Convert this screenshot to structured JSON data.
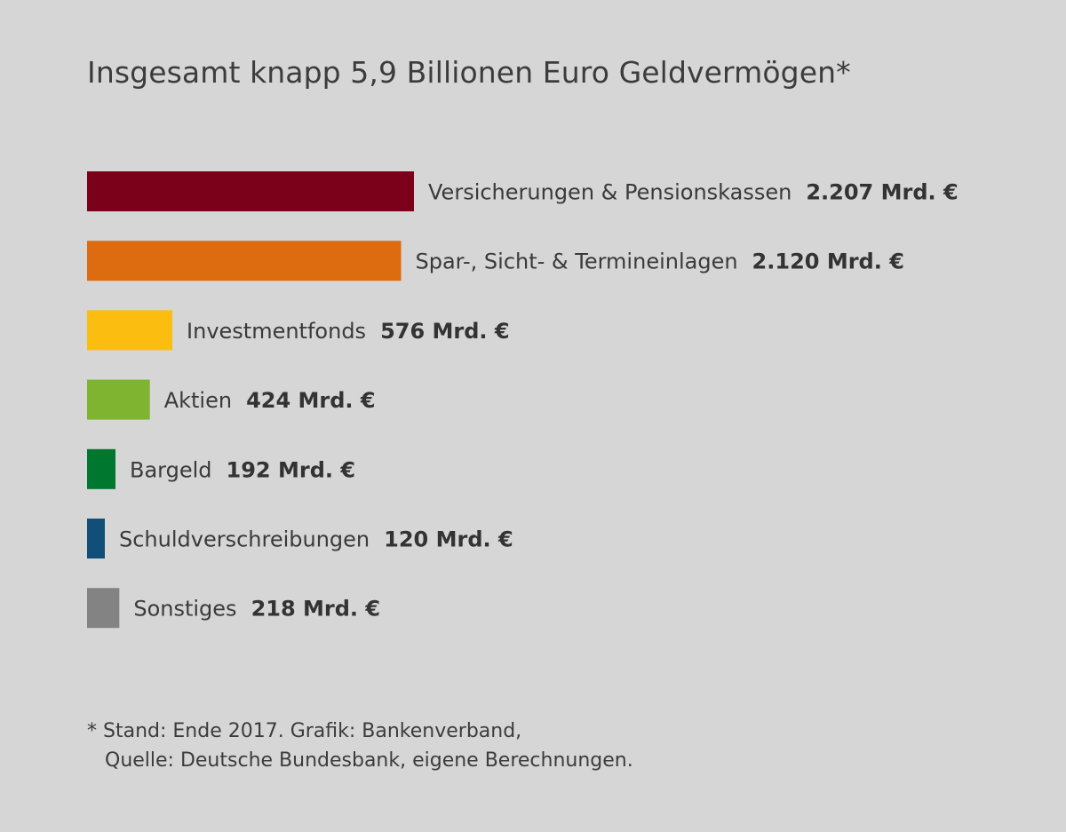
{
  "title": "Insgesamt knapp 5,9 Billionen Euro Geldvermögen*",
  "footnote": {
    "line1": "* Stand: Ende 2017. Grafik: Bankenverband,",
    "line2": "Quelle: Deutsche Bundesbank, eigene Berechnungen."
  },
  "chart_data": {
    "type": "bar",
    "orientation": "horizontal",
    "unit": "Mrd. €",
    "categories": [
      "Versicherungen & Pensionskassen",
      "Spar-, Sicht- & Termineinlagen",
      "Investmentfonds",
      "Aktien",
      "Bargeld",
      "Schuldverschreibungen",
      "Sonstiges"
    ],
    "values": [
      2207,
      2120,
      576,
      424,
      192,
      120,
      218
    ],
    "value_labels": [
      "2.207 Mrd. €",
      "2.120 Mrd. €",
      "576 Mrd. €",
      "424 Mrd. €",
      "192 Mrd. €",
      "120 Mrd. €",
      "218 Mrd. €"
    ],
    "colors": [
      "#7b0019",
      "#dd6b10",
      "#fbbd0f",
      "#7fb430",
      "#00772f",
      "#124f78",
      "#838383"
    ],
    "xlim": [
      0,
      2207
    ],
    "grid": false,
    "legend": "none"
  }
}
